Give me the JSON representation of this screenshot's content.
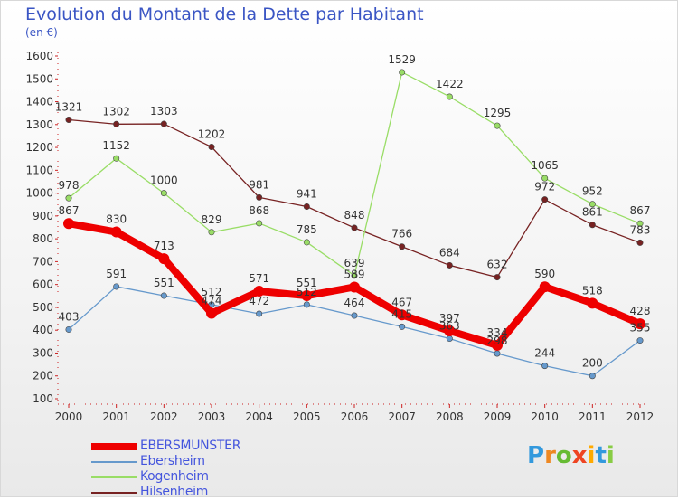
{
  "title": "Evolution du Montant de la Dette par Habitant",
  "subtitle": "(en €)",
  "logo_text": "Proxiti",
  "chart_data": {
    "type": "line",
    "x": [
      "2000",
      "2001",
      "2002",
      "2003",
      "2004",
      "2005",
      "2006",
      "2007",
      "2008",
      "2009",
      "2010",
      "2011",
      "2012"
    ],
    "ylim": [
      100,
      1600
    ],
    "yticks": [
      100,
      200,
      300,
      400,
      500,
      600,
      700,
      800,
      900,
      1000,
      1100,
      1200,
      1300,
      1400,
      1500,
      1600
    ],
    "grid": false,
    "legend": "bottom-left",
    "series": [
      {
        "name": "EBERSMUNSTER",
        "color": "#ee0000",
        "values": [
          867,
          830,
          713,
          474,
          571,
          551,
          589,
          467,
          397,
          334,
          590,
          518,
          428
        ]
      },
      {
        "name": "Ebersheim",
        "color": "#6699cc",
        "values": [
          403,
          591,
          551,
          512,
          472,
          512,
          464,
          415,
          363,
          298,
          244,
          200,
          355
        ]
      },
      {
        "name": "Kogenheim",
        "color": "#99dd66",
        "values": [
          978,
          1152,
          1000,
          829,
          868,
          785,
          639,
          1529,
          1422,
          1295,
          1065,
          952,
          867
        ]
      },
      {
        "name": "Hilsenheim",
        "color": "#772222",
        "values": [
          1321,
          1302,
          1303,
          1202,
          981,
          941,
          848,
          766,
          684,
          632,
          972,
          861,
          783
        ]
      }
    ]
  }
}
